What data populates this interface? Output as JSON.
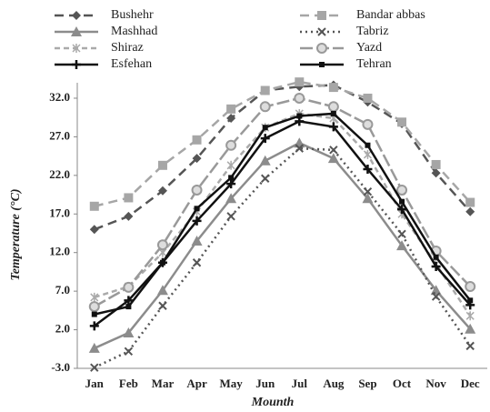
{
  "chart_data": {
    "type": "line",
    "categories": [
      "Jan",
      "Feb",
      "Mar",
      "Apr",
      "May",
      "Jun",
      "Jul",
      "Aug",
      "Sep",
      "Oct",
      "Nov",
      "Dec"
    ],
    "x_label": "Mounth",
    "y_label": "Temperature (°C)",
    "ylim": [
      -3,
      34
    ],
    "yticks": [
      {
        "value": -3,
        "label": "-3.0"
      },
      {
        "value": 2,
        "label": "2.0"
      },
      {
        "value": 7,
        "label": "7.0"
      },
      {
        "value": 12,
        "label": "12.0"
      },
      {
        "value": 17,
        "label": "17.0"
      },
      {
        "value": 22,
        "label": "22.0"
      },
      {
        "value": 27,
        "label": "27.0"
      },
      {
        "value": 32,
        "label": "32.0"
      }
    ],
    "grid": false,
    "series": [
      {
        "name": "Bushehr",
        "color": "#555555",
        "dash": "10,6",
        "marker": "diamond",
        "values": [
          15.0,
          16.7,
          20.0,
          24.2,
          29.4,
          33.0,
          33.5,
          33.7,
          31.5,
          28.7,
          22.3,
          17.3
        ]
      },
      {
        "name": "Bandar abbas",
        "color": "#a6a6a6",
        "dash": "10,6",
        "marker": "square",
        "values": [
          18.0,
          19.1,
          23.3,
          26.6,
          30.6,
          33.0,
          34.1,
          33.4,
          32.0,
          28.9,
          23.4,
          18.5
        ]
      },
      {
        "name": "Mashhad",
        "color": "#8c8c8c",
        "dash": "",
        "marker": "triangle",
        "values": [
          -0.4,
          1.6,
          7.1,
          13.5,
          19.0,
          23.9,
          26.2,
          24.2,
          19.0,
          12.9,
          7.1,
          2.1
        ]
      },
      {
        "name": "Tabriz",
        "color": "#555555",
        "dash": "2,4",
        "marker": "x",
        "values": [
          -2.9,
          -0.8,
          5.1,
          10.7,
          16.7,
          21.6,
          25.5,
          25.3,
          19.9,
          14.4,
          6.3,
          -0.1
        ]
      },
      {
        "name": "Shiraz",
        "color": "#aaaaaa",
        "dash": "6,4",
        "marker": "star",
        "values": [
          6.2,
          7.6,
          12.0,
          17.3,
          23.3,
          28.2,
          30.0,
          29.4,
          24.7,
          17.0,
          10.5,
          3.8
        ]
      },
      {
        "name": "Yazd",
        "color": "#999999",
        "dash": "14,4",
        "marker": "circle",
        "values": [
          5.0,
          7.5,
          13.0,
          20.1,
          25.9,
          30.9,
          32.0,
          30.9,
          28.6,
          20.1,
          12.2,
          7.6
        ]
      },
      {
        "name": "Esfehan",
        "color": "#111111",
        "dash": "",
        "marker": "plus",
        "values": [
          2.5,
          5.8,
          10.7,
          16.1,
          20.9,
          26.8,
          29.0,
          28.3,
          22.8,
          17.6,
          10.2,
          5.2
        ]
      },
      {
        "name": "Tehran",
        "color": "#111111",
        "dash": "",
        "marker": "smallsquare",
        "values": [
          4.0,
          5.0,
          10.7,
          17.7,
          21.7,
          28.2,
          29.7,
          30.0,
          25.9,
          18.6,
          11.4,
          5.8
        ]
      }
    ]
  }
}
